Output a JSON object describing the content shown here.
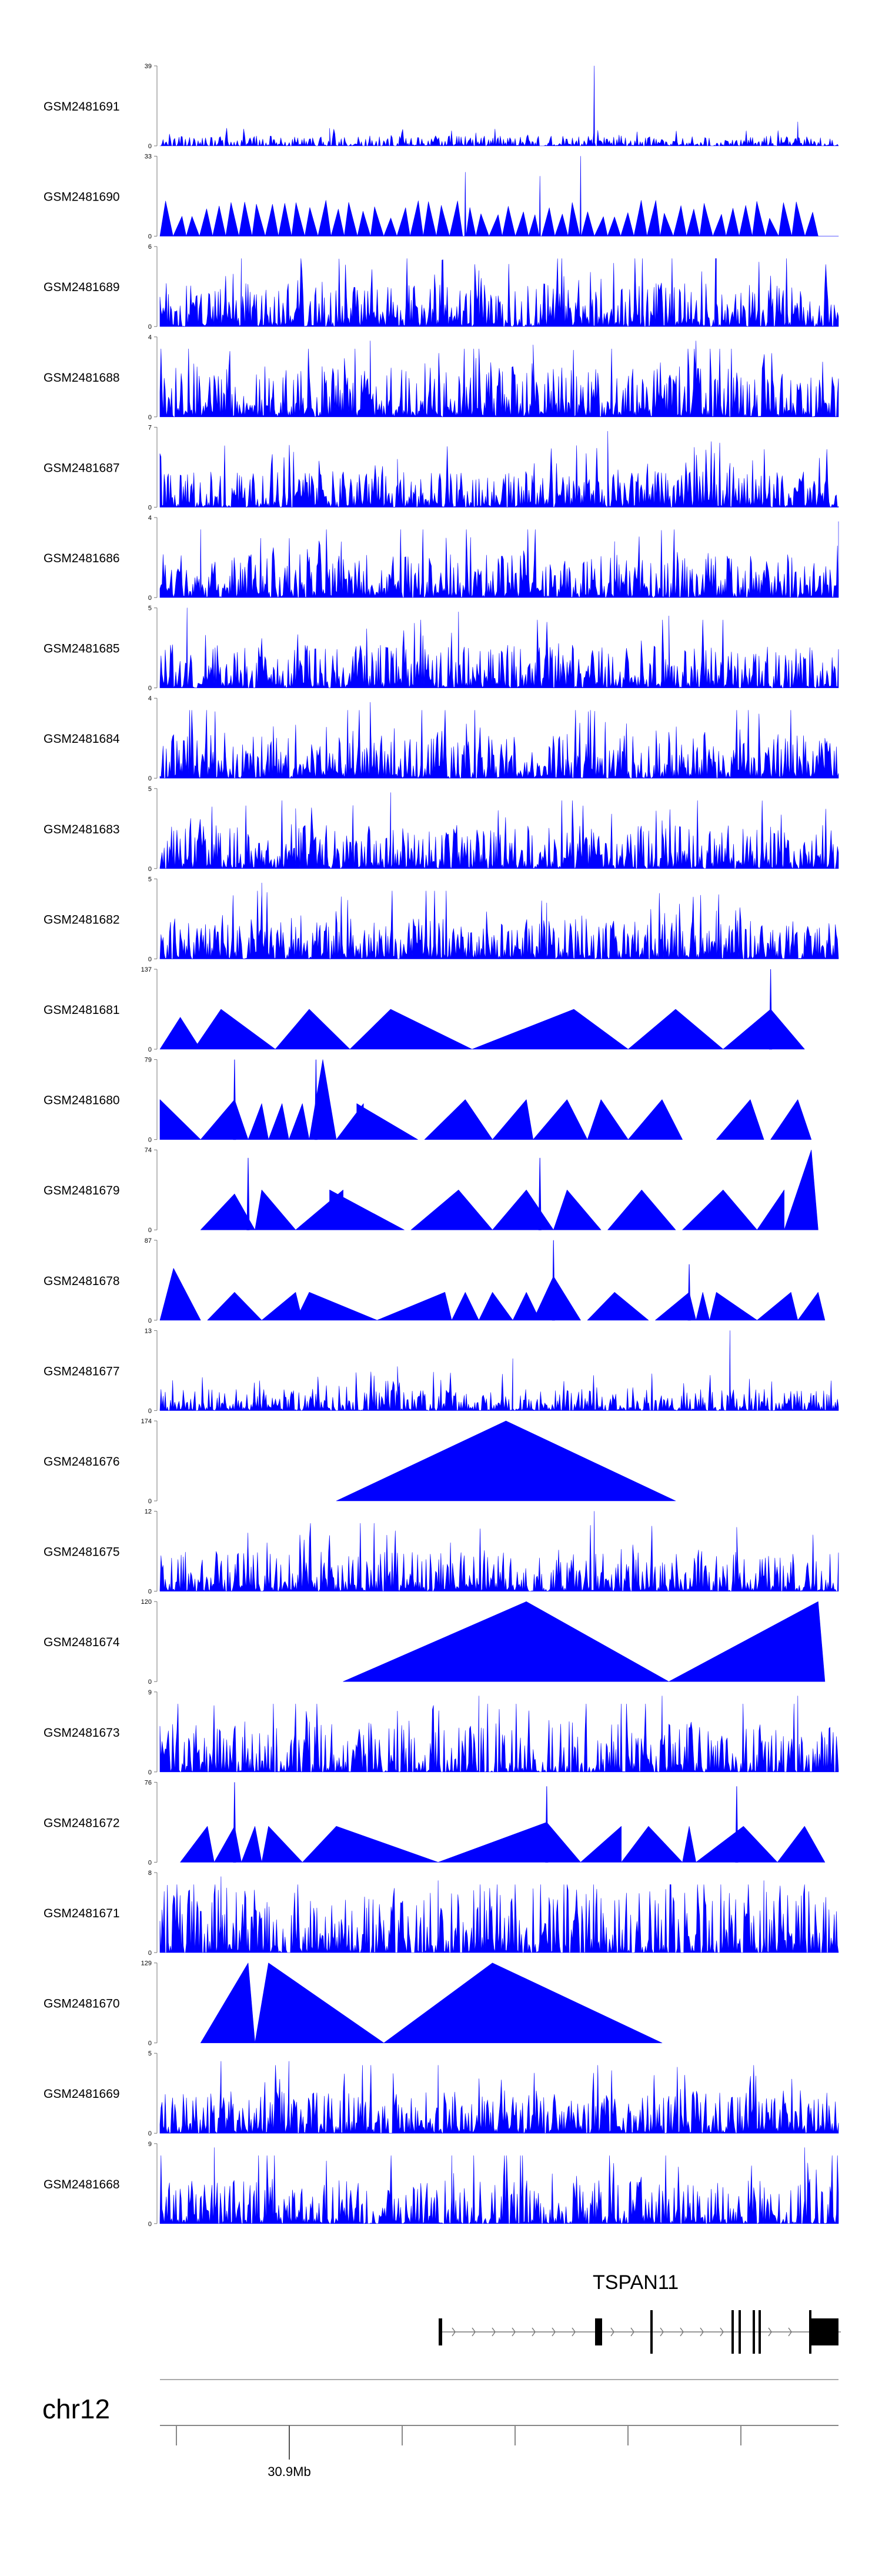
{
  "chart_data": {
    "type": "area",
    "title": "",
    "xlabel": "",
    "ylabel": "",
    "color": "#0000ff",
    "locus": "chr12",
    "gene": {
      "name": "TSPAN11",
      "strand": "+"
    },
    "ticks": [
      {
        "label": "30.9Mb"
      }
    ],
    "tracks": [
      {
        "name": "GSM2481691",
        "ymax": 39,
        "ylabel": "39",
        "style": "noise",
        "density": 0.9,
        "typical": 0.07,
        "spikes": [
          [
            0.64,
            1.0
          ],
          [
            0.94,
            0.3
          ],
          [
            0.25,
            0.22
          ]
        ]
      },
      {
        "name": "GSM2481690",
        "ymax": 33,
        "ylabel": "33",
        "style": "tri",
        "start": 0.0,
        "end": 0.97,
        "pieces": 50,
        "typical": 0.3,
        "spikes": [
          [
            0.62,
            1.0
          ],
          [
            0.45,
            0.8
          ],
          [
            0.56,
            0.75
          ]
        ]
      },
      {
        "name": "GSM2481689",
        "ymax": 6,
        "ylabel": "6",
        "style": "noise",
        "density": 1.0,
        "typical": 0.3,
        "spikes": [
          [
            0.12,
            0.85
          ],
          [
            0.47,
            0.7
          ],
          [
            0.82,
            0.85
          ]
        ]
      },
      {
        "name": "GSM2481688",
        "ymax": 4,
        "ylabel": "4",
        "style": "noise",
        "density": 1.0,
        "typical": 0.35,
        "spikes": [
          [
            0.31,
            0.95
          ],
          [
            0.55,
            0.9
          ],
          [
            0.79,
            0.95
          ]
        ]
      },
      {
        "name": "GSM2481687",
        "ymax": 7,
        "ylabel": "7",
        "style": "noise",
        "density": 1.0,
        "typical": 0.25,
        "spikes": [
          [
            0.66,
            0.95
          ],
          [
            0.35,
            0.6
          ],
          [
            0.84,
            0.55
          ]
        ]
      },
      {
        "name": "GSM2481686",
        "ymax": 4,
        "ylabel": "4",
        "style": "noise",
        "density": 1.0,
        "typical": 0.3,
        "spikes": [
          [
            0.06,
            0.85
          ],
          [
            1.0,
            0.95
          ],
          [
            0.67,
            0.7
          ]
        ]
      },
      {
        "name": "GSM2481685",
        "ymax": 5,
        "ylabel": "5",
        "style": "noise",
        "density": 1.0,
        "typical": 0.3,
        "spikes": [
          [
            0.04,
            1.0
          ],
          [
            0.44,
            0.95
          ],
          [
            0.75,
            0.9
          ]
        ]
      },
      {
        "name": "GSM2481684",
        "ymax": 4,
        "ylabel": "4",
        "style": "noise",
        "density": 1.0,
        "typical": 0.3,
        "spikes": [
          [
            0.31,
            0.95
          ],
          [
            0.6,
            0.55
          ],
          [
            0.98,
            0.5
          ]
        ]
      },
      {
        "name": "GSM2481683",
        "ymax": 5,
        "ylabel": "5",
        "style": "noise",
        "density": 1.0,
        "typical": 0.3,
        "spikes": [
          [
            0.34,
            0.95
          ],
          [
            0.2,
            0.75
          ],
          [
            0.74,
            0.6
          ]
        ]
      },
      {
        "name": "GSM2481682",
        "ymax": 5,
        "ylabel": "5",
        "style": "noise",
        "density": 1.0,
        "typical": 0.28,
        "spikes": [
          [
            0.15,
            0.95
          ],
          [
            0.57,
            0.7
          ],
          [
            0.82,
            0.6
          ]
        ]
      },
      {
        "name": "GSM2481681",
        "ymax": 137,
        "ylabel": "137",
        "style": "sparse",
        "peaks": [
          [
            0.0,
            0.03,
            0.06,
            0.4
          ],
          [
            0.05,
            0.09,
            0.17,
            0.5
          ],
          [
            0.17,
            0.22,
            0.28,
            0.5
          ],
          [
            0.28,
            0.34,
            0.46,
            0.5
          ],
          [
            0.46,
            0.61,
            0.62,
            0.5
          ],
          [
            0.6,
            0.61,
            0.62,
            0.45
          ],
          [
            0.61,
            0.61,
            0.69,
            0.5
          ],
          [
            0.69,
            0.76,
            0.83,
            0.5
          ],
          [
            0.83,
            0.9,
            0.95,
            0.5
          ]
        ],
        "spikes": [
          [
            0.9,
            1.0
          ]
        ]
      },
      {
        "name": "GSM2481680",
        "ymax": 79,
        "ylabel": "79",
        "style": "sparse",
        "peaks": [
          [
            0.0,
            0.0,
            0.06,
            0.5
          ],
          [
            0.06,
            0.11,
            0.13,
            0.5
          ],
          [
            0.13,
            0.15,
            0.16,
            0.45
          ],
          [
            0.16,
            0.18,
            0.19,
            0.45
          ],
          [
            0.19,
            0.21,
            0.22,
            0.45
          ],
          [
            0.22,
            0.24,
            0.26,
            1.0
          ],
          [
            0.26,
            0.3,
            0.3,
            0.45
          ],
          [
            0.29,
            0.29,
            0.38,
            0.45
          ],
          [
            0.39,
            0.45,
            0.49,
            0.5
          ],
          [
            0.49,
            0.54,
            0.55,
            0.5
          ],
          [
            0.55,
            0.6,
            0.63,
            0.5
          ],
          [
            0.63,
            0.65,
            0.69,
            0.5
          ],
          [
            0.69,
            0.74,
            0.77,
            0.5
          ],
          [
            0.82,
            0.87,
            0.89,
            0.5
          ],
          [
            0.9,
            0.94,
            0.96,
            0.5
          ]
        ],
        "spikes": [
          [
            0.11,
            1.0
          ],
          [
            0.23,
            1.0
          ]
        ]
      },
      {
        "name": "GSM2481679",
        "ymax": 74,
        "ylabel": "74",
        "style": "sparse",
        "peaks": [
          [
            0.06,
            0.11,
            0.14,
            0.45
          ],
          [
            0.14,
            0.15,
            0.2,
            0.5
          ],
          [
            0.2,
            0.27,
            0.27,
            0.5
          ],
          [
            0.25,
            0.25,
            0.36,
            0.5
          ],
          [
            0.37,
            0.44,
            0.49,
            0.5
          ],
          [
            0.49,
            0.54,
            0.58,
            0.5
          ],
          [
            0.58,
            0.6,
            0.65,
            0.5
          ],
          [
            0.66,
            0.71,
            0.76,
            0.5
          ],
          [
            0.77,
            0.83,
            0.88,
            0.5
          ],
          [
            0.88,
            0.92,
            0.92,
            0.5
          ],
          [
            0.92,
            0.96,
            0.97,
            1.0
          ]
        ],
        "spikes": [
          [
            0.13,
            0.9
          ],
          [
            0.56,
            0.9
          ]
        ]
      },
      {
        "name": "GSM2481678",
        "ymax": 87,
        "ylabel": "87",
        "style": "sparse",
        "peaks": [
          [
            0.0,
            0.02,
            0.06,
            0.65
          ],
          [
            0.07,
            0.11,
            0.15,
            0.35
          ],
          [
            0.15,
            0.2,
            0.21,
            0.35
          ],
          [
            0.2,
            0.22,
            0.32,
            0.35
          ],
          [
            0.32,
            0.42,
            0.43,
            0.35
          ],
          [
            0.43,
            0.45,
            0.47,
            0.35
          ],
          [
            0.47,
            0.49,
            0.52,
            0.35
          ],
          [
            0.52,
            0.54,
            0.56,
            0.35
          ],
          [
            0.55,
            0.58,
            0.62,
            0.55
          ],
          [
            0.63,
            0.67,
            0.72,
            0.35
          ],
          [
            0.73,
            0.78,
            0.79,
            0.35
          ],
          [
            0.79,
            0.8,
            0.81,
            0.35
          ],
          [
            0.81,
            0.82,
            0.88,
            0.35
          ],
          [
            0.88,
            0.93,
            0.94,
            0.35
          ],
          [
            0.94,
            0.97,
            0.98,
            0.35
          ]
        ],
        "spikes": [
          [
            0.58,
            1.0
          ],
          [
            0.78,
            0.7
          ]
        ]
      },
      {
        "name": "GSM2481677",
        "ymax": 13,
        "ylabel": "13",
        "style": "noise",
        "density": 0.9,
        "typical": 0.15,
        "spikes": [
          [
            0.84,
            1.0
          ],
          [
            0.52,
            0.65
          ],
          [
            0.35,
            0.55
          ]
        ]
      },
      {
        "name": "GSM2481676",
        "ymax": 174,
        "ylabel": "174",
        "style": "sparse",
        "peaks": [
          [
            0.26,
            0.51,
            0.76,
            1.0
          ]
        ],
        "spikes": []
      },
      {
        "name": "GSM2481675",
        "ymax": 12,
        "ylabel": "12",
        "style": "noise",
        "density": 0.9,
        "typical": 0.28,
        "spikes": [
          [
            0.64,
            1.0
          ],
          [
            0.85,
            0.8
          ],
          [
            0.13,
            0.55
          ]
        ]
      },
      {
        "name": "GSM2481674",
        "ymax": 120,
        "ylabel": "120",
        "style": "sparse",
        "peaks": [
          [
            0.27,
            0.54,
            0.75,
            1.0
          ],
          [
            0.75,
            0.97,
            0.98,
            1.0
          ]
        ],
        "spikes": []
      },
      {
        "name": "GSM2481673",
        "ymax": 9,
        "ylabel": "9",
        "style": "noise",
        "density": 0.85,
        "typical": 0.35,
        "spikes": [
          [
            0.47,
            0.95
          ],
          [
            0.74,
            0.95
          ],
          [
            0.94,
            0.95
          ]
        ]
      },
      {
        "name": "GSM2481672",
        "ymax": 76,
        "ylabel": "76",
        "style": "sparse",
        "peaks": [
          [
            0.03,
            0.07,
            0.08,
            0.45
          ],
          [
            0.08,
            0.11,
            0.12,
            0.45
          ],
          [
            0.12,
            0.14,
            0.15,
            0.45
          ],
          [
            0.15,
            0.16,
            0.21,
            0.45
          ],
          [
            0.21,
            0.26,
            0.41,
            0.45
          ],
          [
            0.41,
            0.57,
            0.62,
            0.5
          ],
          [
            0.62,
            0.68,
            0.68,
            0.45
          ],
          [
            0.68,
            0.72,
            0.77,
            0.45
          ],
          [
            0.77,
            0.78,
            0.79,
            0.45
          ],
          [
            0.79,
            0.86,
            0.91,
            0.45
          ],
          [
            0.91,
            0.95,
            0.98,
            0.45
          ]
        ],
        "spikes": [
          [
            0.11,
            1.0
          ],
          [
            0.57,
            0.95
          ],
          [
            0.85,
            0.95
          ]
        ]
      },
      {
        "name": "GSM2481671",
        "ymax": 8,
        "ylabel": "8",
        "style": "noise",
        "density": 0.8,
        "typical": 0.45,
        "spikes": [
          [
            0.09,
            0.95
          ],
          [
            0.41,
            0.9
          ],
          [
            0.89,
            0.9
          ]
        ]
      },
      {
        "name": "GSM2481670",
        "ymax": 129,
        "ylabel": "129",
        "style": "sparse",
        "peaks": [
          [
            0.06,
            0.13,
            0.14,
            1.0
          ],
          [
            0.14,
            0.16,
            0.33,
            1.0
          ],
          [
            0.33,
            0.49,
            0.74,
            1.0
          ]
        ],
        "spikes": []
      },
      {
        "name": "GSM2481669",
        "ymax": 5,
        "ylabel": "5",
        "style": "noise",
        "density": 1.0,
        "typical": 0.3,
        "spikes": [
          [
            0.09,
            0.9
          ],
          [
            0.19,
            0.9
          ],
          [
            0.41,
            0.85
          ]
        ]
      },
      {
        "name": "GSM2481668",
        "ymax": 9,
        "ylabel": "9",
        "style": "noise",
        "density": 0.9,
        "typical": 0.3,
        "spikes": [
          [
            0.08,
            0.95
          ],
          [
            0.95,
            0.95
          ],
          [
            0.43,
            0.85
          ]
        ]
      }
    ]
  }
}
